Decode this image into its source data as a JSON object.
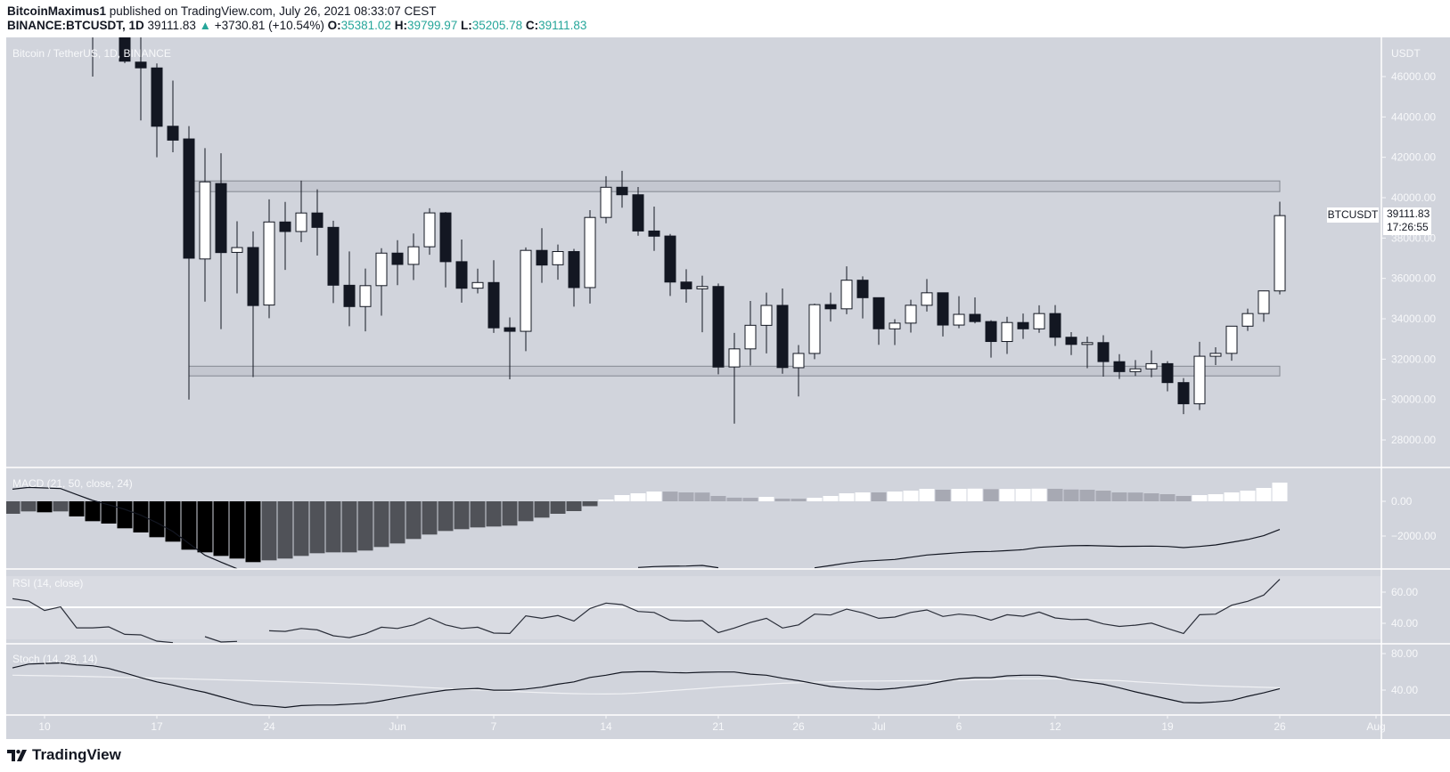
{
  "header": {
    "author": "BitcoinMaximus1",
    "published_text": "published on TradingView.com, July 26, 2021 08:33:07 CEST",
    "symbol": "BINANCE:BTCUSDT, 1D",
    "last": "39111.83",
    "change": "+3730.81 (+10.54%)",
    "o_label": "O:",
    "o": "35381.02",
    "h_label": "H:",
    "h": "39799.97",
    "l_label": "L:",
    "l": "35205.78",
    "c_label": "C:",
    "c": "39111.83",
    "change_icon": "triangle-up-icon"
  },
  "colors": {
    "background": "#d1d4dc",
    "rsi_band": "#d9dbe2",
    "candle_down": "#131722",
    "candle_up": "#ffffff",
    "zone_fill": "#c4c7d0",
    "zone_stroke": "#848891",
    "hist_pos_up": "#ffffff",
    "hist_pos_down": "#a7a9b3",
    "hist_neg_down": "#000000",
    "hist_neg_up": "#505258",
    "teal": "#26a69a"
  },
  "price_label": {
    "symbol": "BTCUSDT",
    "price": "39111.83",
    "countdown": "17:26:55"
  },
  "footer": {
    "logo_text": "TradingView"
  },
  "chart_data": [
    {
      "type": "candlestick",
      "title": "Bitcoin / TetherUS, 1D, BINANCE",
      "currency": "USDT",
      "ylim": [
        26900,
        47850
      ],
      "yticks": [
        "28000.00",
        "30000.00",
        "32000.00",
        "34000.00",
        "36000.00",
        "38000.00",
        "40000.00",
        "42000.00",
        "44000.00",
        "46000.00"
      ],
      "ytick_values": [
        28000,
        30000,
        32000,
        34000,
        36000,
        38000,
        40000,
        42000,
        44000,
        46000
      ],
      "xticks": [
        {
          "date": "2021-05-10",
          "label": "10"
        },
        {
          "date": "2021-05-17",
          "label": "17"
        },
        {
          "date": "2021-05-24",
          "label": "24"
        },
        {
          "date": "2021-06-01",
          "label": "Jun"
        },
        {
          "date": "2021-06-07",
          "label": "7"
        },
        {
          "date": "2021-06-14",
          "label": "14"
        },
        {
          "date": "2021-06-21",
          "label": "21"
        },
        {
          "date": "2021-06-26",
          "label": "26"
        },
        {
          "date": "2021-07-01",
          "label": "Jul"
        },
        {
          "date": "2021-07-06",
          "label": "6"
        },
        {
          "date": "2021-07-12",
          "label": "12"
        },
        {
          "date": "2021-07-19",
          "label": "19"
        },
        {
          "date": "2021-07-26",
          "label": "26"
        },
        {
          "date": "2021-08-01",
          "label": "Aug"
        }
      ],
      "start_date": "2021-05-08",
      "zones": [
        {
          "from": "2021-05-19",
          "to": "2021-07-26",
          "low": 40300,
          "high": 40830
        },
        {
          "from": "2021-05-19",
          "to": "2021-07-26",
          "low": 31170,
          "high": 31650
        }
      ],
      "candles": [
        null,
        null,
        null,
        null,
        null,
        [
          49537,
          51367,
          46000,
          49670
        ],
        [
          49682,
          51438,
          48868,
          49845
        ],
        [
          49855,
          50700,
          46664,
          46762
        ],
        [
          46716,
          49720,
          43825,
          46431
        ],
        [
          46427,
          46650,
          42001,
          43538
        ],
        [
          43538,
          45800,
          42250,
          42850
        ],
        [
          42909,
          43546,
          30000,
          37002
        ],
        [
          36964,
          42451,
          34850,
          40783
        ],
        [
          40700,
          42200,
          33488,
          37280
        ],
        [
          37290,
          38831,
          35256,
          37528
        ],
        [
          37531,
          38330,
          31111,
          34656
        ],
        [
          34681,
          39920,
          34031,
          38796
        ],
        [
          38796,
          39791,
          36419,
          38324
        ],
        [
          38324,
          40841,
          37800,
          39241
        ],
        [
          39242,
          40411,
          37134,
          38529
        ],
        [
          38530,
          38856,
          34779,
          35664
        ],
        [
          35661,
          37338,
          33632,
          34605
        ],
        [
          34606,
          36488,
          33379,
          35641
        ],
        [
          35642,
          37499,
          34153,
          37253
        ],
        [
          37254,
          37894,
          35666,
          36693
        ],
        [
          36694,
          38225,
          35920,
          37568
        ],
        [
          37568,
          39476,
          37170,
          39246
        ],
        [
          39246,
          39289,
          35555,
          36829
        ],
        [
          36829,
          37925,
          34800,
          35513
        ],
        [
          35516,
          36480,
          35258,
          35796
        ],
        [
          35796,
          36900,
          33300,
          33552
        ],
        [
          33556,
          34068,
          31000,
          33380
        ],
        [
          33380,
          37534,
          32396,
          37389
        ],
        [
          37388,
          38491,
          35782,
          36662
        ],
        [
          36677,
          37680,
          35936,
          37331
        ],
        [
          37331,
          37463,
          34600,
          35546
        ],
        [
          35546,
          39380,
          34757,
          39020
        ],
        [
          39021,
          41064,
          38730,
          40516
        ],
        [
          40517,
          41330,
          39506,
          40144
        ],
        [
          40144,
          40527,
          38116,
          38349
        ],
        [
          38349,
          39560,
          37365,
          38092
        ],
        [
          38099,
          38200,
          35129,
          35820
        ],
        [
          35821,
          36457,
          34803,
          35483
        ],
        [
          35483,
          36137,
          33336,
          35600
        ],
        [
          35601,
          35750,
          31251,
          31608
        ],
        [
          31614,
          33298,
          28805,
          32509
        ],
        [
          32509,
          34881,
          31683,
          33678
        ],
        [
          33676,
          35298,
          32286,
          34663
        ],
        [
          34664,
          35500,
          31275,
          31584
        ],
        [
          31577,
          32700,
          30151,
          32283
        ],
        [
          32283,
          34750,
          32000,
          34700
        ],
        [
          34702,
          35297,
          33862,
          34494
        ],
        [
          34494,
          36600,
          34225,
          35911
        ],
        [
          35911,
          36100,
          34017,
          35045
        ],
        [
          35045,
          35036,
          32711,
          33504
        ],
        [
          33502,
          33977,
          32699,
          33786
        ],
        [
          33786,
          34945,
          33316,
          34669
        ],
        [
          34669,
          35967,
          34357,
          35287
        ],
        [
          35288,
          35293,
          33125,
          33690
        ],
        [
          33690,
          35118,
          33532,
          34220
        ],
        [
          34220,
          35059,
          33777,
          33862
        ],
        [
          33863,
          33929,
          32077,
          32875
        ],
        [
          32875,
          34100,
          32261,
          33815
        ],
        [
          33815,
          34262,
          33005,
          33502
        ],
        [
          33502,
          34666,
          33307,
          34258
        ],
        [
          34259,
          34678,
          32658,
          33086
        ],
        [
          33086,
          33340,
          32202,
          32730
        ],
        [
          32729,
          33114,
          31550,
          32820
        ],
        [
          32820,
          33185,
          31133,
          31880
        ],
        [
          31874,
          32249,
          31020,
          31383
        ],
        [
          31383,
          31955,
          31164,
          31520
        ],
        [
          31520,
          32435,
          31108,
          31778
        ],
        [
          31778,
          31899,
          30407,
          30839
        ],
        [
          30839,
          31063,
          29278,
          29790
        ],
        [
          29790,
          32858,
          29482,
          32144
        ],
        [
          32144,
          32591,
          31708,
          32287
        ],
        [
          32287,
          33650,
          31924,
          33634
        ],
        [
          33635,
          34500,
          33401,
          34258
        ],
        [
          34261,
          35398,
          33851,
          35381
        ],
        [
          35381.02,
          39799.97,
          35205.78,
          39111.83
        ]
      ]
    },
    {
      "type": "bar+line",
      "title": "MACD (21, 50, close, 24)",
      "yticks": [
        "0.00",
        "−2000.00"
      ],
      "ytick_values": [
        0,
        -2000
      ],
      "histogram": [
        -718,
        -581,
        -632,
        -581,
        -872,
        -1145,
        -1282,
        -1555,
        -1794,
        -2068,
        -2324,
        -2786,
        -2940,
        -3145,
        -3298,
        -3503,
        -3401,
        -3298,
        -3145,
        -2991,
        -2940,
        -2940,
        -2837,
        -2632,
        -2427,
        -2170,
        -1914,
        -1709,
        -1606,
        -1504,
        -1453,
        -1401,
        -1145,
        -940,
        -718,
        -564,
        -280,
        103,
        359,
        461,
        564,
        560,
        513,
        505,
        308,
        210,
        200,
        256,
        154,
        150,
        205,
        308,
        461,
        513,
        513,
        564,
        615,
        718,
        667,
        718,
        730,
        700,
        710,
        720,
        730,
        720,
        680,
        665,
        615,
        513,
        505,
        461,
        410,
        308,
        359,
        410,
        513,
        615,
        769,
        1077
      ],
      "macd_line": [
        700,
        800,
        770,
        735,
        390,
        50,
        -200,
        -460,
        -800,
        -1230,
        -1740,
        -2430,
        -3110,
        -3500,
        -3880,
        null,
        null,
        null,
        null,
        null,
        null,
        null,
        null,
        null,
        null,
        null,
        null,
        null,
        null,
        null,
        null,
        null,
        null,
        null,
        null,
        null,
        null,
        null,
        null,
        -3811,
        -3760,
        -3740,
        -3726,
        -3690,
        -3828,
        null,
        null,
        null,
        null,
        null,
        -3830,
        -3700,
        -3555,
        -3452,
        -3400,
        -3350,
        -3220,
        -3093,
        -3025,
        -2960,
        -2905,
        -2888,
        -2840,
        -2786,
        -2649,
        -2600,
        -2560,
        -2546,
        -2570,
        -2597,
        -2590,
        -2580,
        -2600,
        -2666,
        -2600,
        -2512,
        -2358,
        -2200,
        -1982,
        -1620
      ]
    },
    {
      "type": "line",
      "title": "RSI (14, close)",
      "yticks": [
        "60.00",
        "40.00"
      ],
      "ytick_values": [
        60,
        40
      ],
      "band": [
        30,
        70
      ],
      "midline": 50,
      "values": [
        55.8,
        54.3,
        48.2,
        50.5,
        37.1,
        37.1,
        37.7,
        32.9,
        32.6,
        28.6,
        27.6,
        null,
        31.4,
        28,
        28.4,
        null,
        35.2,
        34.8,
        36.7,
        35.8,
        32,
        30.8,
        33.3,
        37.5,
        36.7,
        39,
        43.4,
        39,
        36.7,
        37.5,
        33.7,
        33.5,
        44.8,
        43.2,
        45,
        41.4,
        49.5,
        53,
        52,
        47.6,
        47,
        42,
        41.5,
        41.7,
        34,
        37,
        40.5,
        43.2,
        37,
        39,
        45.9,
        45.3,
        49.1,
        46.7,
        43.2,
        44,
        47,
        48.6,
        44.4,
        45.9,
        45,
        42,
        45.5,
        44.5,
        47.2,
        43.4,
        42.4,
        42.6,
        39.6,
        38,
        38.8,
        40.1,
        36.7,
        33.5,
        45.5,
        45.9,
        51.6,
        54.1,
        58.1,
        68.2
      ]
    },
    {
      "type": "line",
      "title": "Stoch (14, 28, 14)",
      "yticks": [
        "80.00",
        "40.00"
      ],
      "ytick_values": [
        80,
        40
      ],
      "k": [
        64.3,
        68.5,
        69.2,
        69.8,
        67.6,
        66.6,
        63.7,
        58.8,
        53.6,
        49,
        45.5,
        41.2,
        37.6,
        32.7,
        27.9,
        23.6,
        22.6,
        21,
        23,
        23.6,
        23.6,
        24.6,
        25.6,
        28.2,
        31.4,
        34.4,
        37.3,
        39.9,
        41.2,
        41.9,
        39.9,
        39.9,
        41.2,
        43.2,
        46.4,
        49,
        53.9,
        56.3,
        59.5,
        60.1,
        60.1,
        59.2,
        58.8,
        59.5,
        59.8,
        59.8,
        57.5,
        56.3,
        53,
        50.3,
        47.1,
        43.9,
        42.2,
        41.2,
        40.6,
        41.9,
        43.9,
        46.1,
        49.7,
        52.3,
        53.6,
        53.6,
        55.6,
        56.3,
        56.3,
        54.6,
        51,
        49,
        46.4,
        42.5,
        38,
        34.1,
        30.2,
        26.3,
        26,
        27,
        28.6,
        33.2,
        37,
        41.6
      ],
      "d": [
        56.3,
        56,
        55.7,
        55.4,
        55.1,
        54.7,
        54.3,
        53.9,
        53.5,
        53.1,
        52.7,
        52.2,
        51.7,
        51.2,
        50.7,
        50.2,
        49.7,
        49.2,
        48.6,
        48,
        47.4,
        46.8,
        46.2,
        45.4,
        44.5,
        43.5,
        42.6,
        41.8,
        41,
        40.2,
        39.4,
        38.6,
        37.9,
        37.2,
        36.6,
        36.1,
        35.8,
        35.7,
        36,
        36.8,
        38,
        39.3,
        40.6,
        41.9,
        43.2,
        44.3,
        45.3,
        46.4,
        47.4,
        48,
        48.6,
        49.2,
        49.7,
        49.9,
        50,
        50.1,
        50.2,
        50.3,
        50.3,
        50.8,
        51.3,
        51.8,
        52.3,
        52.3,
        52.3,
        52.3,
        51.8,
        51.3,
        50.8,
        50.3,
        49.2,
        48.1,
        47.1,
        46.2,
        45.3,
        44.5,
        44,
        43.5,
        43,
        42.5
      ]
    }
  ]
}
